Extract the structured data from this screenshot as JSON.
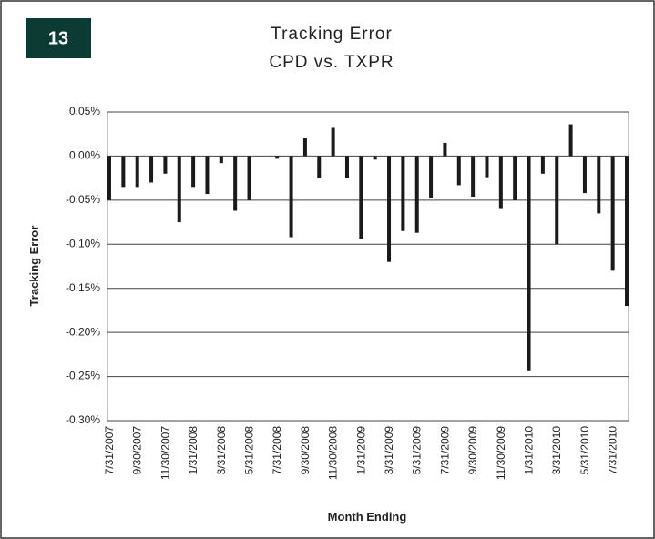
{
  "badge": "13",
  "chart_data": {
    "type": "bar",
    "title": "Tracking Error",
    "subtitle": "CPD vs. TXPR",
    "y_label": "Tracking Error",
    "x_label": "Month Ending",
    "color": "#1a1a1a",
    "grid": true,
    "categories": [
      "7/31/2007",
      null,
      "9/30/2007",
      null,
      "11/30/2007",
      null,
      "1/31/2008",
      null,
      "3/31/2008",
      null,
      "5/31/2008",
      null,
      "7/31/2008",
      null,
      "9/30/2008",
      null,
      "11/30/2008",
      null,
      "1/31/2009",
      null,
      "3/31/2009",
      null,
      "5/31/2009",
      null,
      "7/31/2009",
      null,
      "9/30/2009",
      null,
      "11/30/2009",
      null,
      "1/31/2010",
      null,
      "3/31/2010",
      null,
      "5/31/2010",
      null,
      "7/31/2010",
      null
    ],
    "values": [
      -0.05,
      -0.035,
      -0.035,
      -0.03,
      -0.02,
      -0.075,
      -0.035,
      -0.043,
      -0.008,
      -0.062,
      -0.05,
      0,
      -0.003,
      -0.092,
      0.02,
      -0.025,
      0.032,
      -0.025,
      -0.094,
      -0.004,
      -0.12,
      -0.085,
      -0.087,
      -0.047,
      0.015,
      -0.033,
      -0.046,
      -0.024,
      -0.06,
      -0.05,
      -0.243,
      -0.02,
      -0.1,
      0.036,
      -0.042,
      -0.065,
      -0.13,
      -0.17
    ],
    "ylim": [
      -0.3,
      0.05
    ],
    "yticks": [
      {
        "value": 0.05,
        "label": "0.05%"
      },
      {
        "value": 0,
        "label": "0.00%"
      },
      {
        "value": -0.05,
        "label": "-0.05%"
      },
      {
        "value": -0.1,
        "label": "-0.10%"
      },
      {
        "value": -0.15,
        "label": "-0.15%"
      },
      {
        "value": -0.2,
        "label": "-0.20%"
      },
      {
        "value": -0.25,
        "label": "-0.25%"
      },
      {
        "value": -0.3,
        "label": "-0.30%"
      }
    ]
  }
}
